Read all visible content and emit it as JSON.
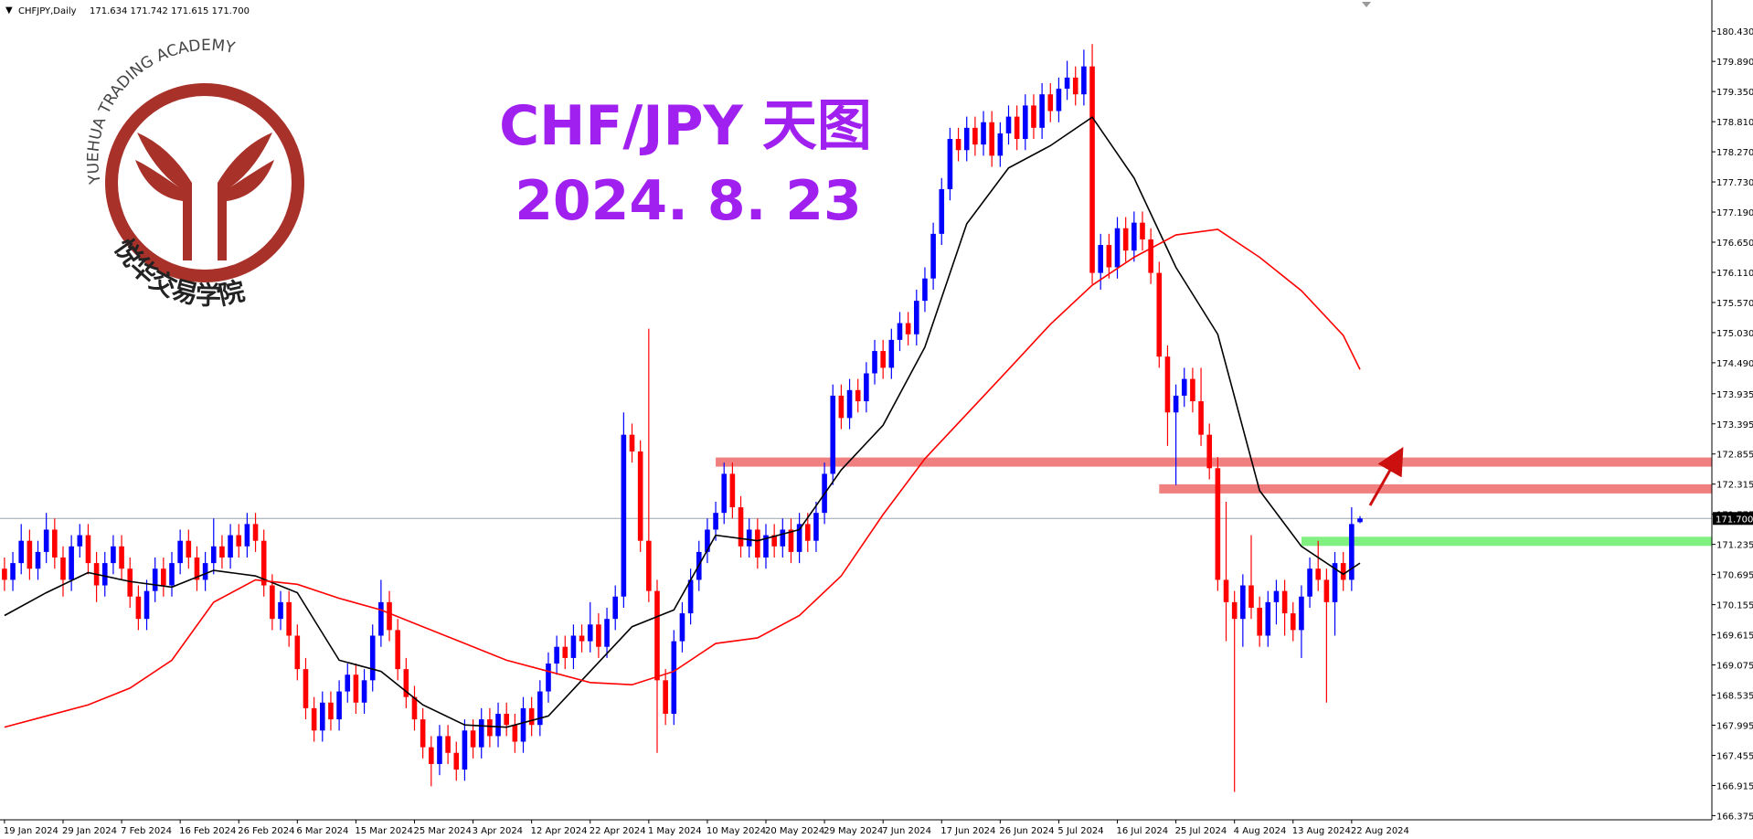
{
  "logo": {
    "name_en": "YUEHUA TRADING ACADEMY",
    "name_cn": "悦华交易学院"
  },
  "chart_data": {
    "type": "candlestick",
    "symbol": "CHFJPY,Daily",
    "ohlc_label": "171.634 171.742 171.615 171.700",
    "title": "CHF/JPY 天图",
    "subtitle": "2024. 8. 23",
    "up_color": "#0000ff",
    "down_color": "#ff0000",
    "ylim": [
      166.3,
      180.99
    ],
    "yticks": [
      166.375,
      166.915,
      167.455,
      167.995,
      168.535,
      169.075,
      169.615,
      170.155,
      170.695,
      171.235,
      171.775,
      172.315,
      172.855,
      173.395,
      173.935,
      {
        "value": 174.49,
        "label": "174.490"
      },
      {
        "value": 175.03,
        "label": "175.030"
      },
      {
        "value": 175.57,
        "label": "175.570"
      },
      {
        "value": 176.11,
        "label": "176.110"
      },
      {
        "value": 176.65,
        "label": "176.650"
      },
      {
        "value": 177.19,
        "label": "177.190"
      },
      {
        "value": 177.73,
        "label": "177.730"
      },
      {
        "value": 178.27,
        "label": "178.270"
      },
      {
        "value": 178.81,
        "label": "178.810"
      },
      {
        "value": 179.35,
        "label": "179.350"
      },
      {
        "value": 179.89,
        "label": "179.890"
      },
      {
        "value": 180.43,
        "label": "180.430"
      }
    ],
    "last_price": {
      "value": 171.7,
      "label": "171.700"
    },
    "categories": [
      "19 Jan 2024",
      null,
      null,
      null,
      null,
      null,
      null,
      "29 Jan 2024",
      null,
      null,
      null,
      null,
      null,
      null,
      "7 Feb 2024",
      null,
      null,
      null,
      null,
      null,
      null,
      "16 Feb 2024",
      null,
      null,
      null,
      null,
      null,
      null,
      "26 Feb 2024",
      null,
      null,
      null,
      null,
      null,
      null,
      "6 Mar 2024",
      null,
      null,
      null,
      null,
      null,
      null,
      "15 Mar 2024",
      null,
      null,
      null,
      null,
      null,
      null,
      "25 Mar 2024",
      null,
      null,
      null,
      null,
      null,
      null,
      "3 Apr 2024",
      null,
      null,
      null,
      null,
      null,
      null,
      "12 Apr 2024",
      null,
      null,
      null,
      null,
      null,
      null,
      "22 Apr 2024",
      null,
      null,
      null,
      null,
      null,
      null,
      "1 May 2024",
      null,
      null,
      null,
      null,
      null,
      null,
      "10 May 2024",
      null,
      null,
      null,
      null,
      null,
      null,
      "20 May 2024",
      null,
      null,
      null,
      null,
      null,
      null,
      "29 May 2024",
      null,
      null,
      null,
      null,
      null,
      null,
      "7 Jun 2024",
      null,
      null,
      null,
      null,
      null,
      null,
      "17 Jun 2024",
      null,
      null,
      null,
      null,
      null,
      null,
      "26 Jun 2024",
      null,
      null,
      null,
      null,
      null,
      null,
      "5 Jul 2024",
      null,
      null,
      null,
      null,
      null,
      null,
      "16 Jul 2024",
      null,
      null,
      null,
      null,
      null,
      null,
      "25 Jul 2024",
      null,
      null,
      null,
      null,
      null,
      null,
      "4 Aug 2024",
      null,
      null,
      null,
      null,
      null,
      null,
      "13 Aug 2024",
      null,
      null,
      null,
      null,
      null,
      null,
      "22 Aug 2024",
      null
    ],
    "open": [
      170.8,
      170.6,
      170.9,
      171.3,
      170.8,
      171.1,
      171.5,
      171.0,
      170.6,
      171.2,
      171.4,
      170.9,
      170.5,
      170.9,
      171.2,
      170.8,
      170.3,
      169.9,
      170.4,
      170.8,
      170.5,
      170.9,
      171.3,
      171.0,
      170.6,
      170.9,
      171.2,
      171.0,
      171.4,
      171.2,
      171.6,
      171.3,
      170.5,
      169.9,
      170.2,
      169.6,
      169.0,
      168.3,
      167.9,
      168.4,
      168.1,
      168.6,
      168.9,
      168.4,
      168.8,
      169.6,
      170.2,
      169.7,
      169.0,
      168.5,
      168.1,
      167.6,
      167.3,
      167.8,
      167.5,
      167.2,
      167.9,
      167.6,
      168.1,
      167.8,
      168.2,
      168.0,
      167.7,
      168.3,
      168.0,
      168.6,
      169.1,
      169.4,
      169.2,
      169.6,
      169.5,
      169.8,
      169.4,
      169.9,
      170.3,
      173.2,
      172.9,
      171.3,
      170.4,
      168.8,
      168.2,
      169.5,
      170.0,
      170.6,
      171.1,
      171.5,
      171.8,
      172.5,
      171.9,
      171.2,
      171.5,
      171.0,
      171.4,
      171.2,
      171.5,
      171.1,
      171.6,
      171.3,
      171.8,
      172.5,
      173.9,
      173.5,
      174.0,
      173.8,
      174.3,
      174.7,
      174.4,
      174.9,
      175.2,
      175.0,
      175.6,
      176.0,
      176.8,
      177.6,
      178.5,
      178.3,
      178.7,
      178.4,
      178.8,
      178.2,
      178.6,
      178.9,
      178.5,
      179.1,
      178.7,
      179.3,
      179.0,
      179.4,
      179.6,
      179.3,
      179.8,
      176.1,
      176.6,
      176.2,
      176.9,
      176.5,
      177.0,
      176.7,
      176.1,
      174.6,
      173.6,
      173.9,
      174.2,
      173.8,
      173.2,
      172.6,
      170.6,
      170.2,
      169.9,
      170.5,
      170.1,
      169.6,
      170.2,
      170.4,
      170.0,
      169.7,
      170.3,
      170.8,
      170.6,
      170.2,
      170.9,
      170.6,
      171.634
    ],
    "high": [
      171.0,
      171.1,
      171.6,
      171.5,
      171.3,
      171.8,
      171.7,
      171.2,
      171.4,
      171.6,
      171.6,
      171.1,
      171.1,
      171.4,
      171.4,
      171.0,
      170.5,
      170.6,
      171.0,
      171.0,
      171.1,
      171.5,
      171.5,
      171.2,
      171.1,
      171.7,
      171.4,
      171.6,
      171.6,
      171.8,
      171.8,
      171.5,
      170.7,
      170.4,
      170.4,
      169.8,
      169.2,
      168.5,
      168.6,
      168.6,
      168.8,
      169.1,
      169.1,
      169.0,
      169.8,
      170.6,
      170.4,
      169.9,
      169.2,
      168.7,
      168.3,
      167.8,
      168.0,
      168.0,
      167.7,
      168.1,
      168.1,
      168.3,
      168.3,
      168.4,
      168.4,
      168.2,
      168.5,
      168.5,
      168.8,
      169.3,
      169.6,
      169.6,
      169.8,
      169.8,
      170.2,
      170.0,
      170.1,
      170.5,
      173.6,
      173.4,
      173.1,
      175.1,
      170.6,
      169.0,
      169.7,
      170.2,
      170.8,
      171.3,
      171.7,
      172.0,
      172.7,
      172.7,
      172.1,
      171.7,
      171.7,
      171.6,
      171.6,
      171.7,
      171.7,
      171.8,
      171.8,
      172.0,
      172.7,
      174.1,
      174.1,
      174.2,
      174.2,
      174.5,
      174.9,
      174.9,
      175.1,
      175.4,
      175.4,
      175.8,
      176.2,
      177.0,
      177.8,
      178.7,
      178.7,
      178.9,
      178.9,
      179.0,
      179.0,
      178.8,
      179.1,
      179.1,
      179.3,
      179.3,
      179.5,
      179.5,
      179.6,
      179.9,
      179.8,
      180.1,
      180.2,
      176.8,
      176.8,
      177.1,
      177.1,
      177.2,
      177.2,
      176.9,
      176.3,
      174.8,
      174.1,
      174.4,
      174.4,
      174.4,
      173.4,
      172.8,
      172.0,
      170.4,
      170.7,
      171.4,
      170.3,
      170.4,
      170.6,
      170.6,
      170.2,
      170.5,
      171.0,
      171.3,
      170.8,
      171.1,
      171.1,
      171.9,
      171.742
    ],
    "low": [
      170.4,
      170.4,
      170.7,
      170.6,
      170.6,
      170.9,
      170.8,
      170.3,
      170.4,
      171.0,
      170.7,
      170.2,
      170.3,
      170.7,
      170.6,
      170.1,
      169.7,
      169.7,
      170.2,
      170.3,
      170.3,
      170.7,
      170.8,
      170.4,
      170.4,
      170.7,
      170.8,
      170.8,
      171.0,
      171.0,
      171.1,
      170.3,
      169.7,
      169.7,
      169.4,
      168.8,
      168.1,
      167.7,
      167.7,
      167.9,
      167.9,
      168.4,
      168.2,
      168.2,
      168.6,
      169.4,
      169.5,
      168.8,
      168.3,
      167.9,
      167.4,
      166.9,
      167.1,
      167.3,
      167.0,
      167.0,
      167.4,
      167.4,
      167.6,
      167.6,
      167.8,
      167.5,
      167.5,
      167.8,
      167.8,
      168.4,
      168.9,
      169.0,
      169.0,
      169.3,
      169.3,
      169.2,
      169.2,
      169.7,
      170.1,
      172.7,
      171.1,
      170.2,
      167.5,
      168.0,
      168.0,
      169.3,
      169.8,
      170.4,
      170.9,
      171.3,
      171.6,
      171.7,
      171.0,
      171.0,
      170.8,
      170.8,
      171.0,
      171.0,
      170.9,
      170.9,
      171.1,
      171.1,
      171.6,
      172.3,
      173.3,
      173.3,
      173.6,
      173.6,
      174.1,
      174.2,
      174.2,
      174.7,
      174.8,
      174.8,
      175.4,
      175.8,
      176.6,
      177.4,
      178.1,
      178.1,
      178.2,
      178.2,
      178.0,
      178.0,
      178.4,
      178.3,
      178.3,
      178.5,
      178.5,
      178.8,
      178.8,
      179.2,
      179.1,
      179.1,
      175.9,
      175.8,
      176.0,
      176.0,
      176.3,
      176.3,
      176.5,
      175.9,
      174.4,
      173.0,
      172.3,
      173.7,
      173.6,
      173.0,
      172.4,
      170.4,
      169.5,
      166.8,
      169.4,
      169.9,
      169.4,
      169.4,
      169.8,
      169.6,
      169.5,
      169.2,
      170.1,
      170.4,
      168.4,
      169.6,
      170.4,
      170.4,
      171.615
    ],
    "close": [
      170.6,
      170.9,
      171.3,
      170.8,
      171.1,
      171.5,
      171.0,
      170.6,
      171.2,
      171.4,
      170.9,
      170.5,
      170.9,
      171.2,
      170.8,
      170.3,
      169.9,
      170.4,
      170.8,
      170.5,
      170.9,
      171.3,
      171.0,
      170.6,
      170.9,
      171.2,
      171.0,
      171.4,
      171.2,
      171.6,
      171.3,
      170.5,
      169.9,
      170.2,
      169.6,
      169.0,
      168.3,
      167.9,
      168.4,
      168.1,
      168.6,
      168.9,
      168.4,
      168.8,
      169.6,
      170.2,
      169.7,
      169.0,
      168.5,
      168.1,
      167.6,
      167.3,
      167.8,
      167.5,
      167.2,
      167.9,
      167.6,
      168.1,
      167.8,
      168.2,
      168.0,
      167.7,
      168.3,
      168.0,
      168.6,
      169.1,
      169.4,
      169.2,
      169.6,
      169.5,
      169.8,
      169.4,
      169.9,
      170.3,
      173.2,
      172.9,
      171.3,
      170.4,
      168.8,
      168.2,
      169.5,
      170.0,
      170.6,
      171.1,
      171.5,
      171.8,
      172.5,
      171.9,
      171.2,
      171.5,
      171.0,
      171.4,
      171.2,
      171.5,
      171.1,
      171.6,
      171.3,
      171.8,
      172.5,
      173.9,
      173.5,
      174.0,
      173.8,
      174.3,
      174.7,
      174.4,
      174.9,
      175.2,
      175.0,
      175.6,
      176.0,
      176.8,
      177.6,
      178.5,
      178.3,
      178.7,
      178.4,
      178.8,
      178.2,
      178.6,
      178.9,
      178.5,
      179.1,
      178.7,
      179.3,
      179.0,
      179.4,
      179.6,
      179.3,
      179.8,
      176.1,
      176.6,
      176.2,
      176.9,
      176.5,
      177.0,
      176.7,
      176.1,
      174.6,
      173.6,
      173.9,
      174.2,
      173.8,
      173.2,
      172.6,
      170.6,
      170.2,
      169.9,
      170.5,
      170.1,
      169.6,
      170.2,
      170.4,
      170.0,
      169.7,
      170.3,
      170.8,
      170.6,
      170.2,
      170.9,
      170.6,
      171.6,
      171.7
    ],
    "overlays": [
      {
        "color": "#000000",
        "x": [
          0,
          5,
          10,
          15,
          20,
          25,
          30,
          35,
          40,
          45,
          50,
          55,
          60,
          65,
          70,
          75,
          80,
          85,
          90,
          95,
          100,
          105,
          110,
          115,
          120,
          125,
          130,
          135,
          140,
          145,
          150,
          155,
          160,
          162
        ],
        "values": [
          169.96,
          170.37,
          170.73,
          170.57,
          170.47,
          170.77,
          170.67,
          170.37,
          169.16,
          168.96,
          168.36,
          168.0,
          167.96,
          168.16,
          168.96,
          169.76,
          170.06,
          171.4,
          171.3,
          171.5,
          172.57,
          173.37,
          174.77,
          176.98,
          177.98,
          178.38,
          178.89,
          177.8,
          176.2,
          175.0,
          172.2,
          171.2,
          170.7,
          170.9
        ]
      },
      {
        "color": "#ff0000",
        "x": [
          0,
          5,
          10,
          15,
          20,
          25,
          30,
          35,
          40,
          45,
          50,
          55,
          60,
          65,
          70,
          75,
          80,
          85,
          90,
          95,
          100,
          105,
          110,
          115,
          120,
          125,
          130,
          135,
          140,
          145,
          150,
          155,
          160,
          162
        ],
        "values": [
          167.96,
          168.16,
          168.36,
          168.66,
          169.16,
          170.2,
          170.6,
          170.52,
          170.27,
          170.06,
          169.76,
          169.46,
          169.16,
          168.96,
          168.76,
          168.72,
          168.96,
          169.46,
          169.56,
          169.96,
          170.67,
          171.77,
          172.77,
          173.57,
          174.37,
          175.18,
          175.88,
          176.38,
          176.78,
          176.88,
          176.38,
          175.78,
          174.98,
          174.37
        ]
      }
    ],
    "levels": [
      {
        "value": 172.71,
        "color": "#f08080",
        "from": 85
      },
      {
        "value": 172.23,
        "color": "#f08080",
        "from": 138
      },
      {
        "value": 171.29,
        "color": "#80f080",
        "from": 155
      }
    ]
  }
}
